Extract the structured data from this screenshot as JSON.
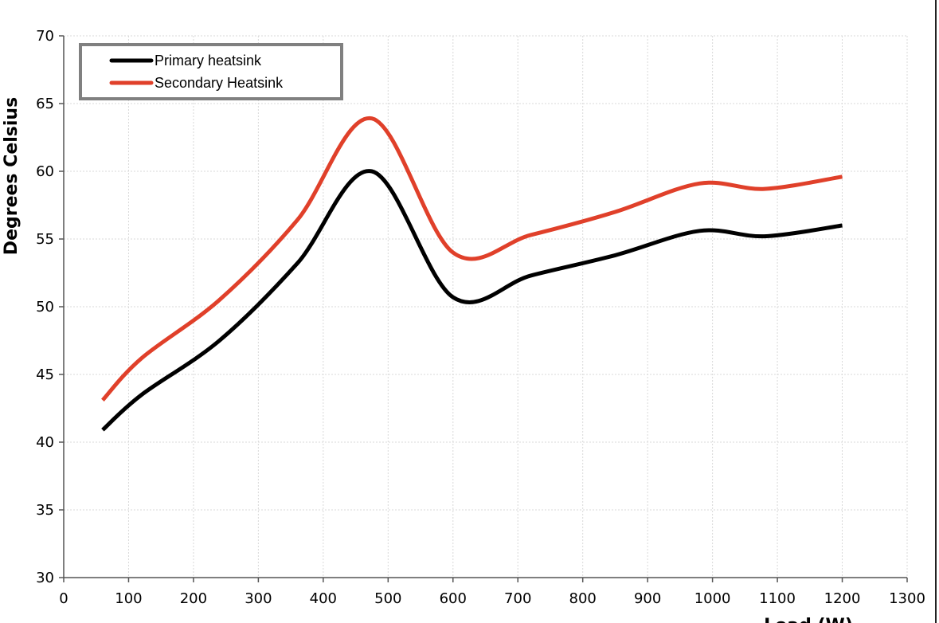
{
  "chart_data": {
    "type": "line",
    "title": "",
    "xlabel": "Load (W)",
    "ylabel": "Degrees Celsius",
    "xlim": [
      0,
      1300
    ],
    "ylim": [
      30,
      70
    ],
    "x_ticks": [
      "0",
      "100",
      "200",
      "300",
      "400",
      "500",
      "600",
      "700",
      "800",
      "900",
      "1000",
      "1100",
      "1200",
      "1300"
    ],
    "y_ticks": [
      "30",
      "35",
      "40",
      "45",
      "50",
      "55",
      "60",
      "65",
      "70"
    ],
    "grid": true,
    "legend_position": "top-left",
    "series": [
      {
        "name": "Primary heatsink",
        "color": "#000000",
        "x": [
          60,
          120,
          240,
          360,
          475,
          600,
          720,
          850,
          980,
          1080,
          1200
        ],
        "y": [
          40.9,
          43.5,
          47.5,
          53.2,
          60.0,
          50.7,
          52.3,
          53.8,
          55.6,
          55.2,
          56.0
        ]
      },
      {
        "name": "Secondary Heatsink",
        "color": "#e0402a",
        "x": [
          60,
          120,
          240,
          360,
          475,
          600,
          720,
          850,
          980,
          1080,
          1200
        ],
        "y": [
          43.1,
          46.2,
          50.5,
          56.4,
          63.9,
          54.0,
          55.3,
          57.0,
          59.1,
          58.7,
          59.6
        ]
      }
    ]
  }
}
